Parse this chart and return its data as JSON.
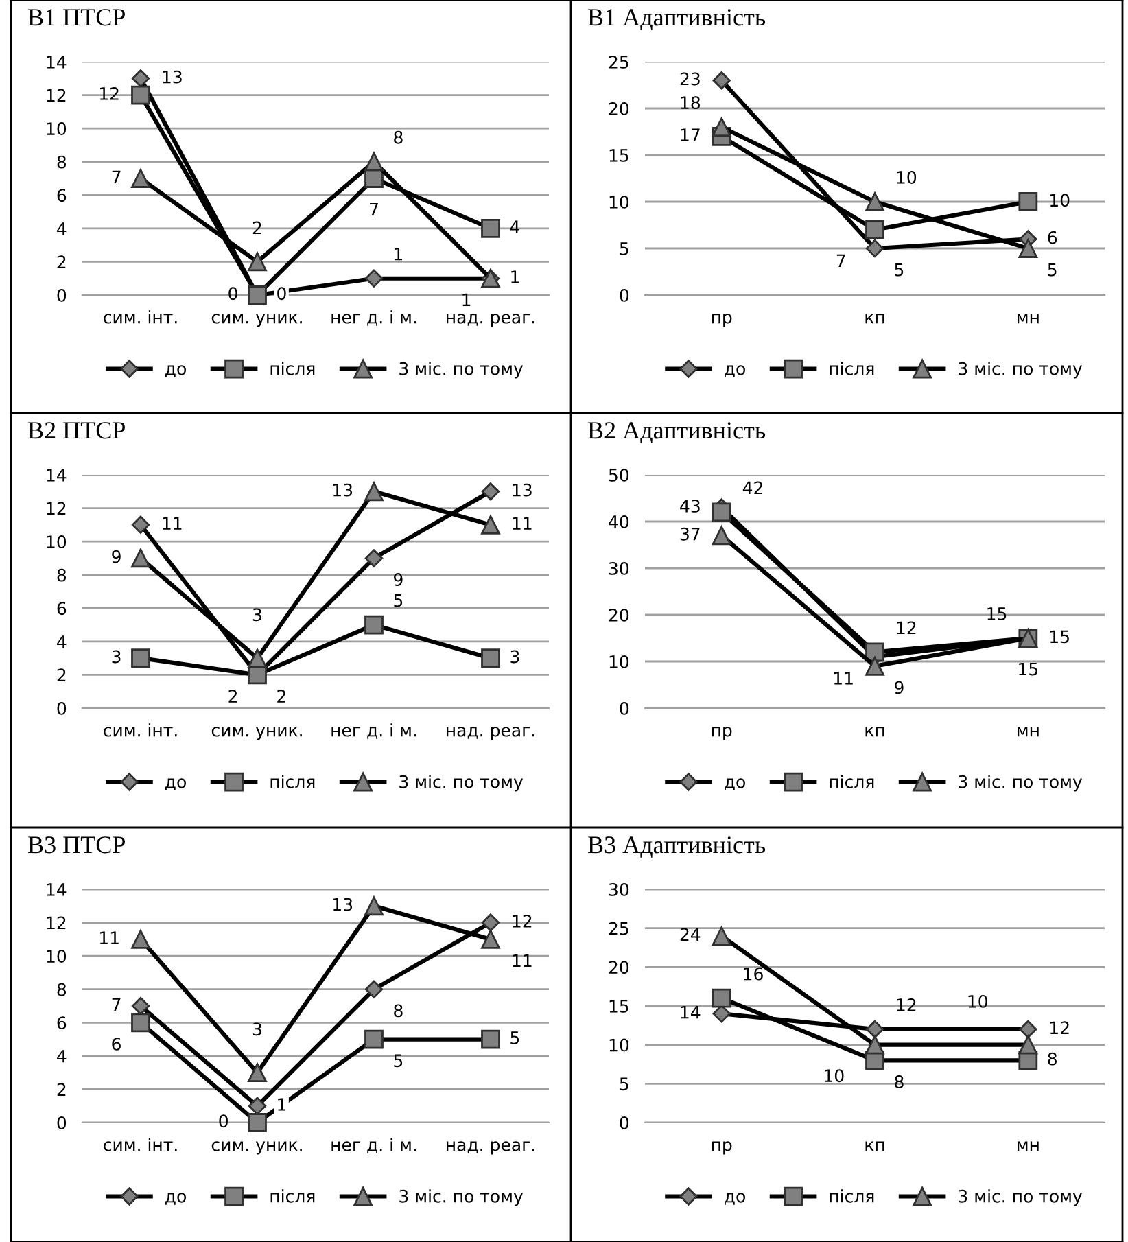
{
  "chart_data": [
    {
      "type": "line",
      "title": "В1 ПТСР",
      "categories": [
        "сим. інт.",
        "сим. уник.",
        "нег д. і м.",
        "над. реаг."
      ],
      "ylim": [
        0,
        14
      ],
      "yticks": [
        0,
        2,
        4,
        6,
        8,
        10,
        12,
        14
      ],
      "grid": "y",
      "legend": "bottom",
      "data_labels": true,
      "series": [
        {
          "name": "до",
          "color": "#000000",
          "marker": "diamond",
          "values": [
            13,
            0,
            1,
            1
          ]
        },
        {
          "name": "після",
          "color": "#000000",
          "marker": "square",
          "values": [
            12,
            0,
            7,
            4
          ]
        },
        {
          "name": "3 міс. по тому",
          "color": "#000000",
          "marker": "triangle",
          "values": [
            7,
            2,
            8,
            1
          ]
        }
      ]
    },
    {
      "type": "line",
      "title": "В1 Адаптивність",
      "categories": [
        "пр",
        "кп",
        "мн"
      ],
      "ylim": [
        0,
        25
      ],
      "yticks": [
        0,
        5,
        10,
        15,
        20,
        25
      ],
      "grid": "y",
      "legend": "bottom",
      "data_labels": true,
      "series": [
        {
          "name": "до",
          "color": "#000000",
          "marker": "diamond",
          "values": [
            23,
            5,
            6
          ]
        },
        {
          "name": "після",
          "color": "#000000",
          "marker": "square",
          "values": [
            17,
            7,
            10
          ]
        },
        {
          "name": "3 міс. по тому",
          "color": "#000000",
          "marker": "triangle",
          "values": [
            18,
            10,
            5
          ]
        }
      ]
    },
    {
      "type": "line",
      "title": "В2 ПТСР",
      "categories": [
        "сим. інт.",
        "сим. уник.",
        "нег д. і м.",
        "над. реаг."
      ],
      "ylim": [
        0,
        14
      ],
      "yticks": [
        0,
        2,
        4,
        6,
        8,
        10,
        12,
        14
      ],
      "grid": "y",
      "legend": "bottom",
      "data_labels": true,
      "series": [
        {
          "name": "до",
          "color": "#000000",
          "marker": "diamond",
          "values": [
            11,
            2,
            9,
            13
          ]
        },
        {
          "name": "після",
          "color": "#000000",
          "marker": "square",
          "values": [
            3,
            2,
            5,
            3
          ]
        },
        {
          "name": "3 міс. по тому",
          "color": "#000000",
          "marker": "triangle",
          "values": [
            9,
            3,
            13,
            11
          ]
        }
      ]
    },
    {
      "type": "line",
      "title": "В2 Адаптивність",
      "categories": [
        "пр",
        "кп",
        "мн"
      ],
      "ylim": [
        0,
        50
      ],
      "yticks": [
        0,
        10,
        20,
        30,
        40,
        50
      ],
      "grid": "y",
      "legend": "bottom",
      "data_labels": true,
      "series": [
        {
          "name": "до",
          "color": "#000000",
          "marker": "diamond",
          "values": [
            43,
            11,
            15
          ]
        },
        {
          "name": "після",
          "color": "#000000",
          "marker": "square",
          "values": [
            42,
            12,
            15
          ]
        },
        {
          "name": "3 міс. по тому",
          "color": "#000000",
          "marker": "triangle",
          "values": [
            37,
            9,
            15
          ]
        }
      ]
    },
    {
      "type": "line",
      "title": "В3 ПТСР",
      "categories": [
        "сим. інт.",
        "сим. уник.",
        "нег д. і м.",
        "над. реаг."
      ],
      "ylim": [
        0,
        14
      ],
      "yticks": [
        0,
        2,
        4,
        6,
        8,
        10,
        12,
        14
      ],
      "grid": "y",
      "legend": "bottom",
      "data_labels": true,
      "series": [
        {
          "name": "до",
          "color": "#000000",
          "marker": "diamond",
          "values": [
            7,
            1,
            8,
            12
          ]
        },
        {
          "name": "після",
          "color": "#000000",
          "marker": "square",
          "values": [
            6,
            0,
            5,
            5
          ]
        },
        {
          "name": "3 міс. по тому",
          "color": "#000000",
          "marker": "triangle",
          "values": [
            11,
            3,
            13,
            11
          ]
        }
      ]
    },
    {
      "type": "line",
      "title": "В3 Адаптивність",
      "categories": [
        "пр",
        "кп",
        "мн"
      ],
      "ylim": [
        0,
        30
      ],
      "yticks": [
        0,
        5,
        10,
        15,
        20,
        25,
        30
      ],
      "grid": "y",
      "legend": "bottom",
      "data_labels": true,
      "series": [
        {
          "name": "до",
          "color": "#000000",
          "marker": "diamond",
          "values": [
            14,
            12,
            12
          ]
        },
        {
          "name": "після",
          "color": "#000000",
          "marker": "square",
          "values": [
            16,
            8,
            8
          ]
        },
        {
          "name": "3 міс. по тому",
          "color": "#000000",
          "marker": "triangle",
          "values": [
            24,
            10,
            10
          ]
        }
      ]
    }
  ]
}
